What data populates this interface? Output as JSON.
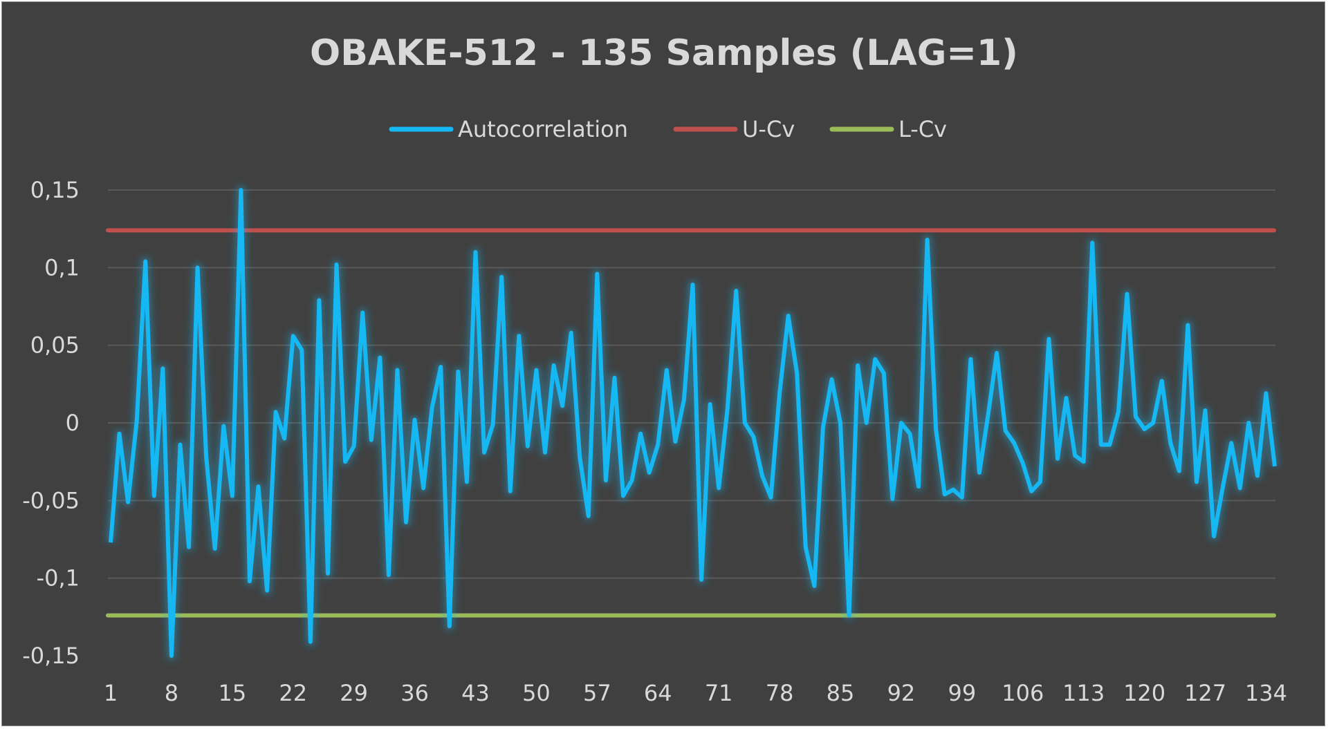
{
  "chart_data": {
    "type": "line",
    "title": "OBAKE-512 - 135 Samples (LAG=1)",
    "xlabel": "",
    "ylabel": "",
    "ylim": [
      -0.15,
      0.15
    ],
    "yticks": [
      "0,15",
      "0,1",
      "0,05",
      "0",
      "-0,05",
      "-0,1",
      "-0,15"
    ],
    "ytick_values": [
      0.15,
      0.1,
      0.05,
      0,
      -0.05,
      -0.1,
      -0.15
    ],
    "xticks": [
      "1",
      "8",
      "15",
      "22",
      "29",
      "36",
      "43",
      "50",
      "57",
      "64",
      "71",
      "78",
      "85",
      "92",
      "99",
      "106",
      "113",
      "120",
      "127",
      "134"
    ],
    "x_start": 1,
    "legend_position": "top",
    "grid": true,
    "colors": {
      "background": "#404040",
      "grid": "#595959",
      "text": "#d9d9d9",
      "autocorrelation": "#16b8f3",
      "ucv": "#c0504d",
      "lcv": "#9bbb59"
    },
    "series": [
      {
        "name": "Autocorrelation",
        "values": [
          -0.077,
          -0.007,
          -0.051,
          0.001,
          0.104,
          -0.047,
          0.035,
          -0.152,
          -0.014,
          -0.08,
          0.1,
          -0.022,
          -0.081,
          -0.002,
          -0.047,
          0.16,
          -0.102,
          -0.041,
          -0.108,
          0.007,
          -0.01,
          0.056,
          0.047,
          -0.141,
          0.079,
          -0.097,
          0.102,
          -0.025,
          -0.015,
          0.071,
          -0.011,
          0.042,
          -0.098,
          0.034,
          -0.064,
          0.002,
          -0.042,
          0.01,
          0.036,
          -0.131,
          0.033,
          -0.038,
          0.11,
          -0.019,
          -0.001,
          0.094,
          -0.044,
          0.056,
          -0.015,
          0.034,
          -0.019,
          0.037,
          0.011,
          0.058,
          -0.022,
          -0.06,
          0.096,
          -0.037,
          0.029,
          -0.047,
          -0.037,
          -0.007,
          -0.032,
          -0.014,
          0.034,
          -0.012,
          0.015,
          0.089,
          -0.101,
          0.012,
          -0.042,
          0.009,
          0.085,
          0.0,
          -0.009,
          -0.034,
          -0.048,
          0.019,
          0.069,
          0.032,
          -0.08,
          -0.105,
          -0.003,
          0.028,
          0.0,
          -0.124,
          0.037,
          0.0,
          0.041,
          0.032,
          -0.049,
          0.0,
          -0.007,
          -0.041,
          0.118,
          -0.004,
          -0.046,
          -0.043,
          -0.048,
          0.041,
          -0.032,
          0.005,
          0.045,
          -0.005,
          -0.013,
          -0.026,
          -0.044,
          -0.038,
          0.054,
          -0.023,
          0.016,
          -0.021,
          -0.025,
          0.116,
          -0.014,
          -0.014,
          0.007,
          0.083,
          0.004,
          -0.004,
          0.0,
          0.027,
          -0.013,
          -0.031,
          0.063,
          -0.038,
          0.008,
          -0.073,
          -0.042,
          -0.013,
          -0.042,
          0.0,
          -0.034,
          0.019,
          -0.028
        ]
      },
      {
        "name": "U-Cv",
        "constant": 0.124
      },
      {
        "name": "L-Cv",
        "constant": -0.124
      }
    ]
  }
}
